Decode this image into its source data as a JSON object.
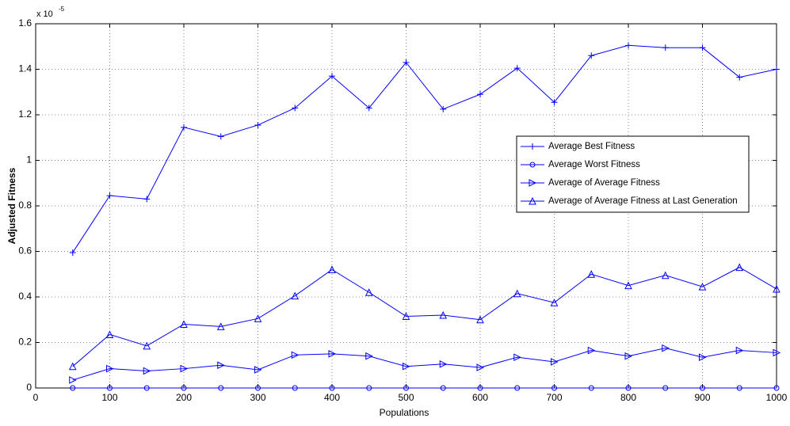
{
  "chart_data": {
    "type": "line",
    "y_multiplier": {
      "base": "x 10",
      "exponent": "-5"
    },
    "xlabel": "Populations",
    "ylabel": "Adjusted Fitness",
    "x": [
      50,
      100,
      150,
      200,
      250,
      300,
      350,
      400,
      450,
      500,
      550,
      600,
      650,
      700,
      750,
      800,
      850,
      900,
      950,
      1000
    ],
    "series": [
      {
        "name": "Average Best Fitness",
        "color": "#0000ff",
        "marker": "plus",
        "values": [
          0.595,
          0.845,
          0.83,
          1.145,
          1.105,
          1.155,
          1.23,
          1.37,
          1.23,
          1.43,
          1.225,
          1.29,
          1.405,
          1.255,
          1.46,
          1.505,
          1.495,
          1.495,
          1.365,
          1.4
        ]
      },
      {
        "name": "Average Worst Fitness",
        "color": "#0000ff",
        "marker": "circle",
        "values": [
          0,
          0,
          0,
          0,
          0,
          0,
          0,
          0,
          0,
          0,
          0,
          0,
          0,
          0,
          0,
          0,
          0,
          0,
          0,
          0
        ]
      },
      {
        "name": "Average of Average Fitness",
        "color": "#0000ff",
        "marker": "triangle-right",
        "values": [
          0.035,
          0.085,
          0.075,
          0.085,
          0.1,
          0.08,
          0.145,
          0.15,
          0.14,
          0.095,
          0.105,
          0.09,
          0.135,
          0.115,
          0.165,
          0.14,
          0.175,
          0.135,
          0.165,
          0.155
        ]
      },
      {
        "name": "Average of Average Fitness at Last Generation",
        "color": "#0000ff",
        "marker": "triangle-up",
        "values": [
          0.095,
          0.235,
          0.185,
          0.28,
          0.27,
          0.305,
          0.405,
          0.52,
          0.42,
          0.315,
          0.32,
          0.3,
          0.415,
          0.375,
          0.5,
          0.45,
          0.495,
          0.445,
          0.53,
          0.435
        ]
      }
    ],
    "xlim": [
      0,
      1000
    ],
    "xticks": [
      0,
      100,
      200,
      300,
      400,
      500,
      600,
      700,
      800,
      900,
      1000
    ],
    "ylim": [
      0,
      1.6
    ],
    "yticks": [
      0,
      0.2,
      0.4,
      0.6,
      0.8,
      1,
      1.2,
      1.4,
      1.6
    ],
    "grid": true,
    "legend": "right"
  }
}
